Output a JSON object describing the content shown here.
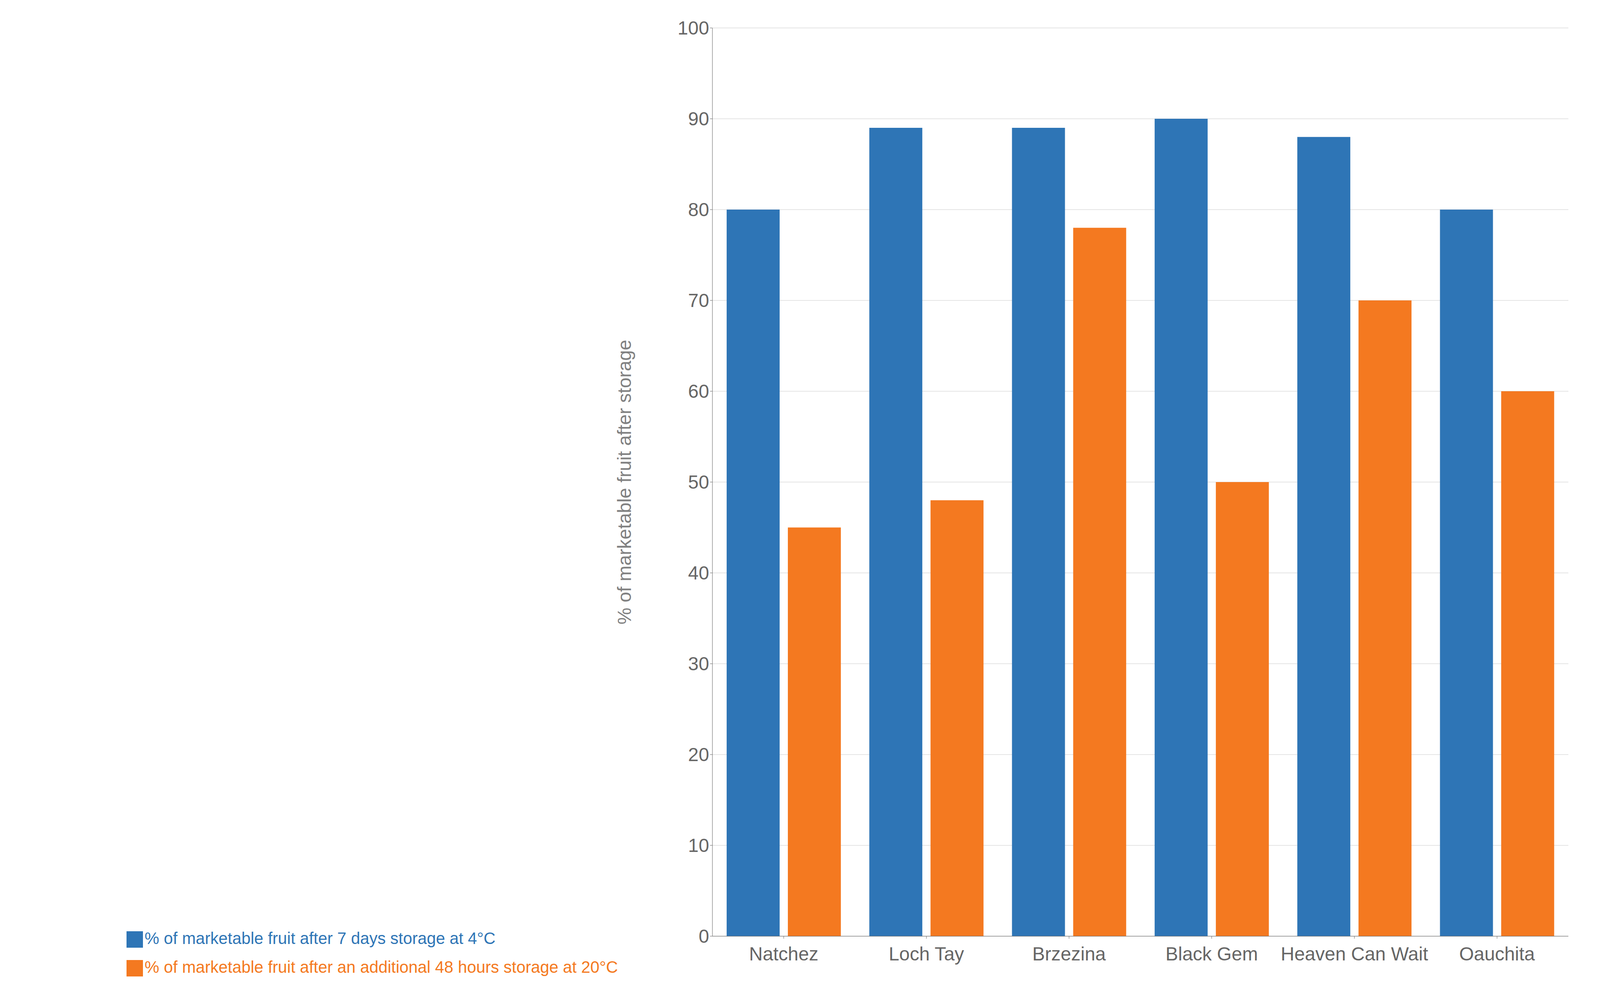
{
  "chart_data": {
    "type": "bar",
    "categories": [
      "Natchez",
      "Loch Tay",
      "Brzezina",
      "Black Gem",
      "Heaven Can Wait",
      "Oauchita"
    ],
    "series": [
      {
        "name": "% of marketable fruit after 7 days storage at 4°C",
        "color": "#2E75B6",
        "values": [
          80,
          89,
          89,
          90,
          88,
          80
        ]
      },
      {
        "name": "% of marketable fruit after an additional 48 hours storage at 20°C",
        "color": "#F47920",
        "values": [
          45,
          48,
          78,
          50,
          70,
          60
        ]
      }
    ],
    "y_label": "% of marketable fruit after storage",
    "ylim": [
      0,
      100
    ],
    "yticks": [
      0,
      10,
      20,
      30,
      40,
      50,
      60,
      70,
      80,
      90,
      100
    ],
    "grid": true,
    "legend": "bottom"
  }
}
